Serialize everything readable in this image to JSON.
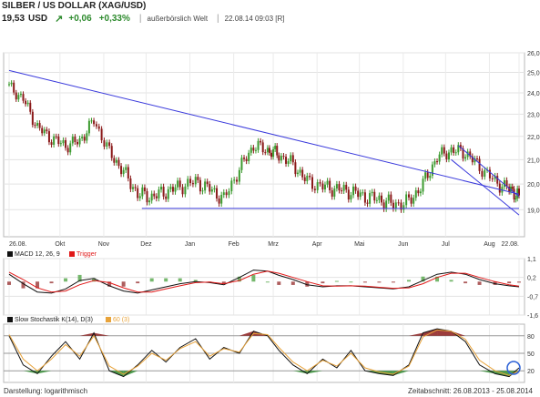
{
  "header": {
    "title": "SILBER / US DOLLAR (XAG/USD)",
    "price": "19,53",
    "currency": "USD",
    "change_abs": "+0,06",
    "change_pct": "+0,33%",
    "exchange": "außerbörslich Welt",
    "timestamp": "22.08.14 09:03 [R]",
    "trend_icon": "up-arrow-icon"
  },
  "footer": {
    "scale_label": "Darstellung: logarithmisch",
    "period_label": "Zeitabschnitt: 26.08.2013 - 25.08.2014"
  },
  "colors": {
    "up": "#3c9a2f",
    "down": "#8b1a1a",
    "trendline": "#3a3adc",
    "macd": "#111111",
    "trigger": "#e01818",
    "stoch_k": "#111111",
    "stoch_d": "#e8a33a",
    "zone_high": "#8b1a1a",
    "zone_low": "#2e8b2e",
    "highlight": "#2a5fd6"
  },
  "chart_data": [
    {
      "type": "candlestick",
      "title": "",
      "scale": "log",
      "ylim": [
        18.0,
        26.0
      ],
      "ytick_labels": [
        "26,0",
        "25,0",
        "24,0",
        "23,0",
        "22,0",
        "21,0",
        "20,0",
        "19,0"
      ],
      "yticks": [
        26,
        25,
        24,
        23,
        22,
        21,
        20,
        19
      ],
      "xtick_labels": [
        "26.08.",
        "Okt",
        "Nov",
        "Dez",
        "Jan",
        "Feb",
        "Mrz",
        "Apr",
        "Mai",
        "Jun",
        "Jul",
        "Aug",
        "22.08."
      ],
      "x": [
        "2013-08-26",
        "2013-09-05",
        "2013-09-15",
        "2013-09-25",
        "2013-10-05",
        "2013-10-15",
        "2013-10-25",
        "2013-11-05",
        "2013-11-15",
        "2013-11-25",
        "2013-12-05",
        "2013-12-15",
        "2013-12-25",
        "2014-01-05",
        "2014-01-15",
        "2014-01-25",
        "2014-02-05",
        "2014-02-15",
        "2014-02-25",
        "2014-03-05",
        "2014-03-15",
        "2014-03-25",
        "2014-04-05",
        "2014-04-15",
        "2014-04-25",
        "2014-05-05",
        "2014-05-15",
        "2014-05-25",
        "2014-06-05",
        "2014-06-15",
        "2014-06-25",
        "2014-07-05",
        "2014-07-15",
        "2014-07-25",
        "2014-08-05",
        "2014-08-15",
        "2014-08-22"
      ],
      "close": [
        24.3,
        23.7,
        22.4,
        21.9,
        21.6,
        21.8,
        22.7,
        21.3,
        20.5,
        19.6,
        19.5,
        19.7,
        19.9,
        20.1,
        19.8,
        19.4,
        20.6,
        21.6,
        21.4,
        21.2,
        20.8,
        20.1,
        19.9,
        19.8,
        19.7,
        19.5,
        19.4,
        19.2,
        19.3,
        20.0,
        21.1,
        21.4,
        21.3,
        20.7,
        20.1,
        19.8,
        19.55
      ],
      "trendlines": [
        {
          "name": "resistance",
          "points": [
            [
              "2013-08-26",
              25.1
            ],
            [
              "2014-08-22",
              19.6
            ]
          ]
        },
        {
          "name": "support",
          "points": [
            [
              "2013-11-28",
              19.05
            ],
            [
              "2014-08-22",
              19.05
            ]
          ]
        },
        {
          "name": "channel-upper",
          "points": [
            [
              "2014-07-10",
              21.6
            ],
            [
              "2014-08-22",
              19.5
            ]
          ]
        },
        {
          "name": "channel-lower",
          "points": [
            [
              "2014-07-05",
              21.0
            ],
            [
              "2014-08-22",
              18.8
            ]
          ]
        }
      ]
    },
    {
      "type": "line",
      "title": "MACD 12, 26, 9",
      "legend": [
        "MACD 12, 26, 9",
        "Trigger"
      ],
      "ytick_labels": [
        "1,1",
        "0,2",
        "-0,7",
        "-1,6"
      ],
      "yticks": [
        1.1,
        0.2,
        -0.7,
        -1.6
      ],
      "ylim": [
        -1.6,
        1.1
      ],
      "series": [
        {
          "name": "MACD 12, 26, 9",
          "values": [
            0.35,
            -0.1,
            -0.5,
            -0.55,
            -0.35,
            0.05,
            0.15,
            -0.2,
            -0.45,
            -0.55,
            -0.4,
            -0.25,
            -0.1,
            0.0,
            -0.05,
            -0.15,
            0.2,
            0.55,
            0.5,
            0.3,
            0.1,
            -0.15,
            -0.25,
            -0.2,
            -0.2,
            -0.25,
            -0.3,
            -0.35,
            -0.25,
            0.05,
            0.35,
            0.45,
            0.35,
            0.1,
            -0.1,
            -0.2,
            -0.25
          ]
        },
        {
          "name": "Trigger",
          "values": [
            0.45,
            0.1,
            -0.3,
            -0.5,
            -0.45,
            -0.15,
            0.05,
            -0.05,
            -0.3,
            -0.5,
            -0.5,
            -0.35,
            -0.2,
            -0.05,
            -0.02,
            -0.1,
            0.05,
            0.35,
            0.5,
            0.4,
            0.2,
            0.0,
            -0.2,
            -0.22,
            -0.2,
            -0.22,
            -0.27,
            -0.32,
            -0.3,
            -0.1,
            0.2,
            0.4,
            0.4,
            0.2,
            0.0,
            -0.15,
            -0.22
          ]
        }
      ]
    },
    {
      "type": "line",
      "title": "Slow Stochastik K(14), D(3)",
      "legend": [
        "Slow Stochastik K(14), D(3)",
        "60 (3)"
      ],
      "ytick_labels": [
        "80",
        "50",
        "20"
      ],
      "yticks": [
        80,
        50,
        20
      ],
      "ylim": [
        0,
        100
      ],
      "series": [
        {
          "name": "Slow Stochastik K(14), D(3)",
          "values": [
            80,
            30,
            15,
            45,
            70,
            40,
            85,
            20,
            10,
            30,
            55,
            35,
            60,
            75,
            40,
            60,
            50,
            88,
            80,
            55,
            30,
            15,
            40,
            25,
            55,
            20,
            15,
            12,
            30,
            85,
            92,
            88,
            70,
            30,
            15,
            10,
            25
          ]
        },
        {
          "name": "60 (3)",
          "values": [
            82,
            40,
            20,
            40,
            65,
            45,
            80,
            28,
            14,
            28,
            50,
            38,
            58,
            70,
            45,
            58,
            52,
            84,
            82,
            60,
            35,
            20,
            38,
            28,
            50,
            25,
            18,
            14,
            28,
            78,
            90,
            88,
            74,
            38,
            20,
            12,
            20
          ]
        }
      ]
    }
  ]
}
